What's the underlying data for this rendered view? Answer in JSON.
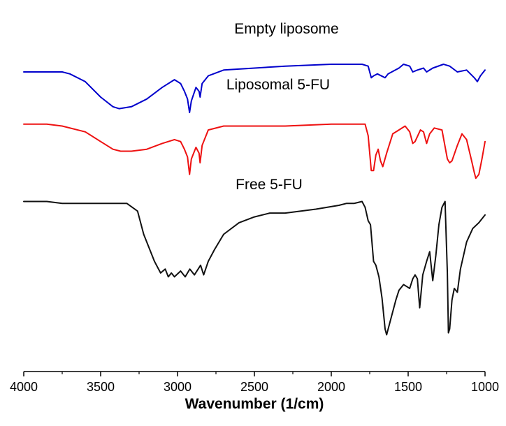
{
  "chart_data": {
    "type": "line",
    "title": "",
    "xlabel": "Wavenumber (1/cm)",
    "ylabel": "",
    "xlim": [
      4000,
      1000
    ],
    "x_reversed": true,
    "ylim": [
      -1.55,
      0.3
    ],
    "xticks": [
      "4000",
      "3500",
      "3000",
      "2500",
      "2000",
      "1500",
      "1000"
    ],
    "series": [
      {
        "name": "Empty liposome",
        "color": "#0000cc",
        "points": [
          [
            4000,
            0.0
          ],
          [
            3850,
            0.0
          ],
          [
            3750,
            0.0
          ],
          [
            3700,
            -0.01
          ],
          [
            3600,
            -0.05
          ],
          [
            3500,
            -0.13
          ],
          [
            3420,
            -0.18
          ],
          [
            3380,
            -0.19
          ],
          [
            3300,
            -0.18
          ],
          [
            3200,
            -0.14
          ],
          [
            3100,
            -0.08
          ],
          [
            3020,
            -0.04
          ],
          [
            2980,
            -0.06
          ],
          [
            2955,
            -0.1
          ],
          [
            2935,
            -0.14
          ],
          [
            2922,
            -0.21
          ],
          [
            2910,
            -0.15
          ],
          [
            2880,
            -0.08
          ],
          [
            2860,
            -0.1
          ],
          [
            2853,
            -0.13
          ],
          [
            2840,
            -0.06
          ],
          [
            2800,
            -0.02
          ],
          [
            2700,
            0.01
          ],
          [
            2500,
            0.02
          ],
          [
            2300,
            0.03
          ],
          [
            2000,
            0.04
          ],
          [
            1800,
            0.04
          ],
          [
            1760,
            0.03
          ],
          [
            1740,
            -0.03
          ],
          [
            1725,
            -0.02
          ],
          [
            1700,
            -0.01
          ],
          [
            1650,
            -0.03
          ],
          [
            1630,
            -0.01
          ],
          [
            1560,
            0.02
          ],
          [
            1530,
            0.04
          ],
          [
            1490,
            0.03
          ],
          [
            1470,
            0.0
          ],
          [
            1440,
            0.01
          ],
          [
            1400,
            0.02
          ],
          [
            1380,
            0.0
          ],
          [
            1340,
            0.02
          ],
          [
            1270,
            0.04
          ],
          [
            1230,
            0.03
          ],
          [
            1180,
            0.0
          ],
          [
            1120,
            0.01
          ],
          [
            1070,
            -0.03
          ],
          [
            1050,
            -0.05
          ],
          [
            1030,
            -0.02
          ],
          [
            1000,
            0.01
          ]
        ]
      },
      {
        "name": "Liposomal 5-FU",
        "color": "#ee1111",
        "points": [
          [
            4000,
            -0.27
          ],
          [
            3850,
            -0.27
          ],
          [
            3750,
            -0.28
          ],
          [
            3600,
            -0.31
          ],
          [
            3500,
            -0.36
          ],
          [
            3420,
            -0.4
          ],
          [
            3370,
            -0.41
          ],
          [
            3300,
            -0.41
          ],
          [
            3200,
            -0.4
          ],
          [
            3100,
            -0.37
          ],
          [
            3020,
            -0.35
          ],
          [
            2980,
            -0.36
          ],
          [
            2955,
            -0.4
          ],
          [
            2935,
            -0.44
          ],
          [
            2922,
            -0.53
          ],
          [
            2910,
            -0.45
          ],
          [
            2880,
            -0.39
          ],
          [
            2860,
            -0.42
          ],
          [
            2853,
            -0.47
          ],
          [
            2840,
            -0.38
          ],
          [
            2800,
            -0.3
          ],
          [
            2700,
            -0.28
          ],
          [
            2500,
            -0.28
          ],
          [
            2300,
            -0.28
          ],
          [
            2000,
            -0.27
          ],
          [
            1780,
            -0.27
          ],
          [
            1760,
            -0.33
          ],
          [
            1740,
            -0.51
          ],
          [
            1725,
            -0.51
          ],
          [
            1710,
            -0.43
          ],
          [
            1695,
            -0.4
          ],
          [
            1680,
            -0.46
          ],
          [
            1665,
            -0.49
          ],
          [
            1640,
            -0.42
          ],
          [
            1600,
            -0.32
          ],
          [
            1560,
            -0.3
          ],
          [
            1520,
            -0.28
          ],
          [
            1490,
            -0.31
          ],
          [
            1470,
            -0.37
          ],
          [
            1455,
            -0.36
          ],
          [
            1420,
            -0.3
          ],
          [
            1400,
            -0.31
          ],
          [
            1380,
            -0.37
          ],
          [
            1360,
            -0.32
          ],
          [
            1330,
            -0.29
          ],
          [
            1280,
            -0.3
          ],
          [
            1245,
            -0.45
          ],
          [
            1230,
            -0.47
          ],
          [
            1215,
            -0.46
          ],
          [
            1180,
            -0.38
          ],
          [
            1150,
            -0.32
          ],
          [
            1120,
            -0.35
          ],
          [
            1090,
            -0.45
          ],
          [
            1070,
            -0.52
          ],
          [
            1060,
            -0.55
          ],
          [
            1040,
            -0.53
          ],
          [
            1020,
            -0.45
          ],
          [
            1000,
            -0.36
          ]
        ]
      },
      {
        "name": "Free 5-FU",
        "color": "#111111",
        "points": [
          [
            4000,
            -0.67
          ],
          [
            3850,
            -0.67
          ],
          [
            3750,
            -0.68
          ],
          [
            3500,
            -0.68
          ],
          [
            3330,
            -0.68
          ],
          [
            3260,
            -0.72
          ],
          [
            3220,
            -0.84
          ],
          [
            3150,
            -0.98
          ],
          [
            3110,
            -1.04
          ],
          [
            3080,
            -1.02
          ],
          [
            3060,
            -1.06
          ],
          [
            3040,
            -1.04
          ],
          [
            3020,
            -1.06
          ],
          [
            2980,
            -1.03
          ],
          [
            2950,
            -1.06
          ],
          [
            2920,
            -1.02
          ],
          [
            2890,
            -1.05
          ],
          [
            2850,
            -1.0
          ],
          [
            2830,
            -1.05
          ],
          [
            2800,
            -0.98
          ],
          [
            2760,
            -0.92
          ],
          [
            2700,
            -0.84
          ],
          [
            2600,
            -0.78
          ],
          [
            2500,
            -0.75
          ],
          [
            2400,
            -0.73
          ],
          [
            2300,
            -0.73
          ],
          [
            2100,
            -0.71
          ],
          [
            1950,
            -0.69
          ],
          [
            1900,
            -0.68
          ],
          [
            1850,
            -0.68
          ],
          [
            1800,
            -0.67
          ],
          [
            1780,
            -0.7
          ],
          [
            1760,
            -0.77
          ],
          [
            1745,
            -0.79
          ],
          [
            1725,
            -0.98
          ],
          [
            1710,
            -1.0
          ],
          [
            1700,
            -1.03
          ],
          [
            1690,
            -1.06
          ],
          [
            1670,
            -1.17
          ],
          [
            1650,
            -1.33
          ],
          [
            1640,
            -1.36
          ],
          [
            1620,
            -1.3
          ],
          [
            1580,
            -1.18
          ],
          [
            1560,
            -1.13
          ],
          [
            1530,
            -1.1
          ],
          [
            1510,
            -1.11
          ],
          [
            1490,
            -1.12
          ],
          [
            1470,
            -1.07
          ],
          [
            1455,
            -1.05
          ],
          [
            1440,
            -1.07
          ],
          [
            1425,
            -1.22
          ],
          [
            1405,
            -1.05
          ],
          [
            1380,
            -0.98
          ],
          [
            1360,
            -0.93
          ],
          [
            1340,
            -1.08
          ],
          [
            1320,
            -0.95
          ],
          [
            1300,
            -0.79
          ],
          [
            1280,
            -0.7
          ],
          [
            1260,
            -0.67
          ],
          [
            1245,
            -1.04
          ],
          [
            1238,
            -1.35
          ],
          [
            1230,
            -1.33
          ],
          [
            1215,
            -1.18
          ],
          [
            1200,
            -1.12
          ],
          [
            1180,
            -1.14
          ],
          [
            1160,
            -1.02
          ],
          [
            1120,
            -0.88
          ],
          [
            1080,
            -0.81
          ],
          [
            1040,
            -0.78
          ],
          [
            1000,
            -0.74
          ]
        ]
      }
    ]
  }
}
